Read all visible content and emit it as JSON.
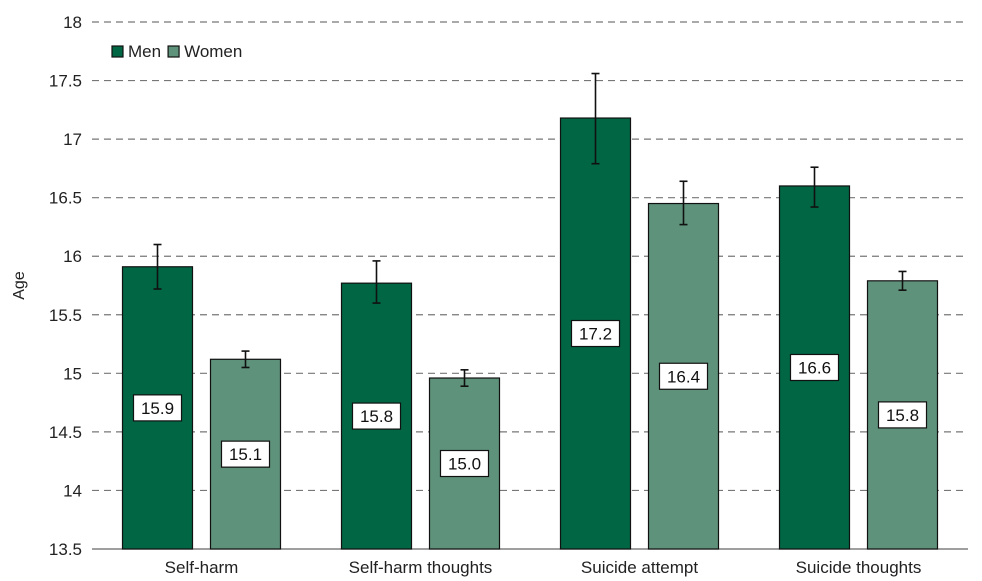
{
  "chart_data": {
    "type": "bar",
    "title": "",
    "xlabel": "",
    "ylabel": "Age",
    "ylim": [
      13.5,
      18
    ],
    "yticks": [
      13.5,
      14,
      14.5,
      15,
      15.5,
      16,
      16.5,
      17,
      17.5,
      18
    ],
    "grid": "horizontal-dashed",
    "legend_position": "top-left",
    "categories": [
      "Self-harm",
      "Self-harm thoughts",
      "Suicide attempt",
      "Suicide thoughts"
    ],
    "series": [
      {
        "name": "Men",
        "color": "#006644",
        "values": [
          15.91,
          15.77,
          17.18,
          16.6
        ],
        "error_low": [
          15.72,
          15.6,
          16.79,
          16.42
        ],
        "error_high": [
          16.1,
          15.96,
          17.56,
          16.76
        ],
        "labels": [
          "15.9",
          "15.8",
          "17.2",
          "16.6"
        ]
      },
      {
        "name": "Women",
        "color": "#5e927b",
        "values": [
          15.12,
          14.96,
          16.45,
          15.79
        ],
        "error_low": [
          15.05,
          14.89,
          16.27,
          15.71
        ],
        "error_high": [
          15.19,
          15.03,
          16.64,
          15.87
        ],
        "labels": [
          "15.1",
          "15.0",
          "16.4",
          "15.8"
        ]
      }
    ]
  }
}
